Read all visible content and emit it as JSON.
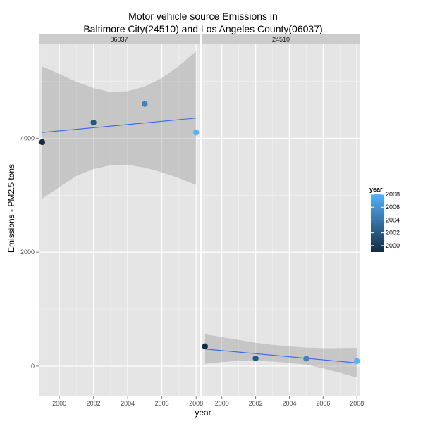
{
  "chart_data": {
    "type": "scatter",
    "title_lines": [
      "Motor vehicle source Emissions in",
      "Baltimore City(24510) and Los Angeles County(06037)"
    ],
    "xlabel": "year",
    "ylabel": "Emissions - PM2.5 tons",
    "xlim": [
      1998.8,
      2008.2
    ],
    "ylim": [
      -520,
      5660
    ],
    "x_ticks": [
      2000,
      2002,
      2004,
      2006,
      2008
    ],
    "x_tick_labels": [
      "2000",
      "2002",
      "2004",
      "2006",
      "2008"
    ],
    "y_ticks": [
      0,
      2000,
      4000
    ],
    "y_tick_labels": [
      "0",
      "2000",
      "4000"
    ],
    "grid": true,
    "panels": [
      {
        "label": "06037",
        "points": [
          {
            "x": 1999,
            "y": 3931
          },
          {
            "x": 2002,
            "y": 4274
          },
          {
            "x": 2005,
            "y": 4601
          },
          {
            "x": 2008,
            "y": 4101
          }
        ],
        "fit": {
          "x": [
            1999,
            2008
          ],
          "y": [
            4100,
            4353
          ]
        },
        "band": {
          "x": [
            1999,
            2000,
            2001,
            2002,
            2003,
            2004,
            2005,
            2006,
            2007,
            2008
          ],
          "upper": [
            5260,
            5130,
            4990,
            4880,
            4810,
            4825,
            4910,
            5055,
            5270,
            5525
          ],
          "lower": [
            2940,
            3140,
            3340,
            3460,
            3525,
            3535,
            3485,
            3400,
            3300,
            3180
          ]
        }
      },
      {
        "label": "24510",
        "points": [
          {
            "x": 1999,
            "y": 347
          },
          {
            "x": 2002,
            "y": 134
          },
          {
            "x": 2005,
            "y": 131
          },
          {
            "x": 2008,
            "y": 88
          }
        ],
        "fit": {
          "x": [
            1999,
            2008
          ],
          "y": [
            300,
            55
          ]
        },
        "band": {
          "x": [
            1999,
            2000,
            2001,
            2002,
            2003,
            2004,
            2005,
            2006,
            2007,
            2008
          ],
          "upper": [
            560,
            510,
            460,
            410,
            375,
            345,
            325,
            315,
            315,
            320
          ],
          "lower": [
            40,
            70,
            90,
            95,
            80,
            55,
            25,
            -40,
            -120,
            -200
          ]
        }
      }
    ],
    "legend": {
      "title": "year",
      "labels": [
        "2008",
        "2006",
        "2004",
        "2002",
        "2000"
      ],
      "values": [
        2008,
        2006,
        2004,
        2002,
        2000
      ],
      "range": [
        1999,
        2008
      ],
      "placement": "right"
    },
    "colors": {
      "low": "#132b43",
      "high": "#56b1f7",
      "fit_line": "#3366ff",
      "band": "#999999",
      "panel_bg": "#e5e5e5",
      "strip_bg": "#cccccc"
    }
  }
}
